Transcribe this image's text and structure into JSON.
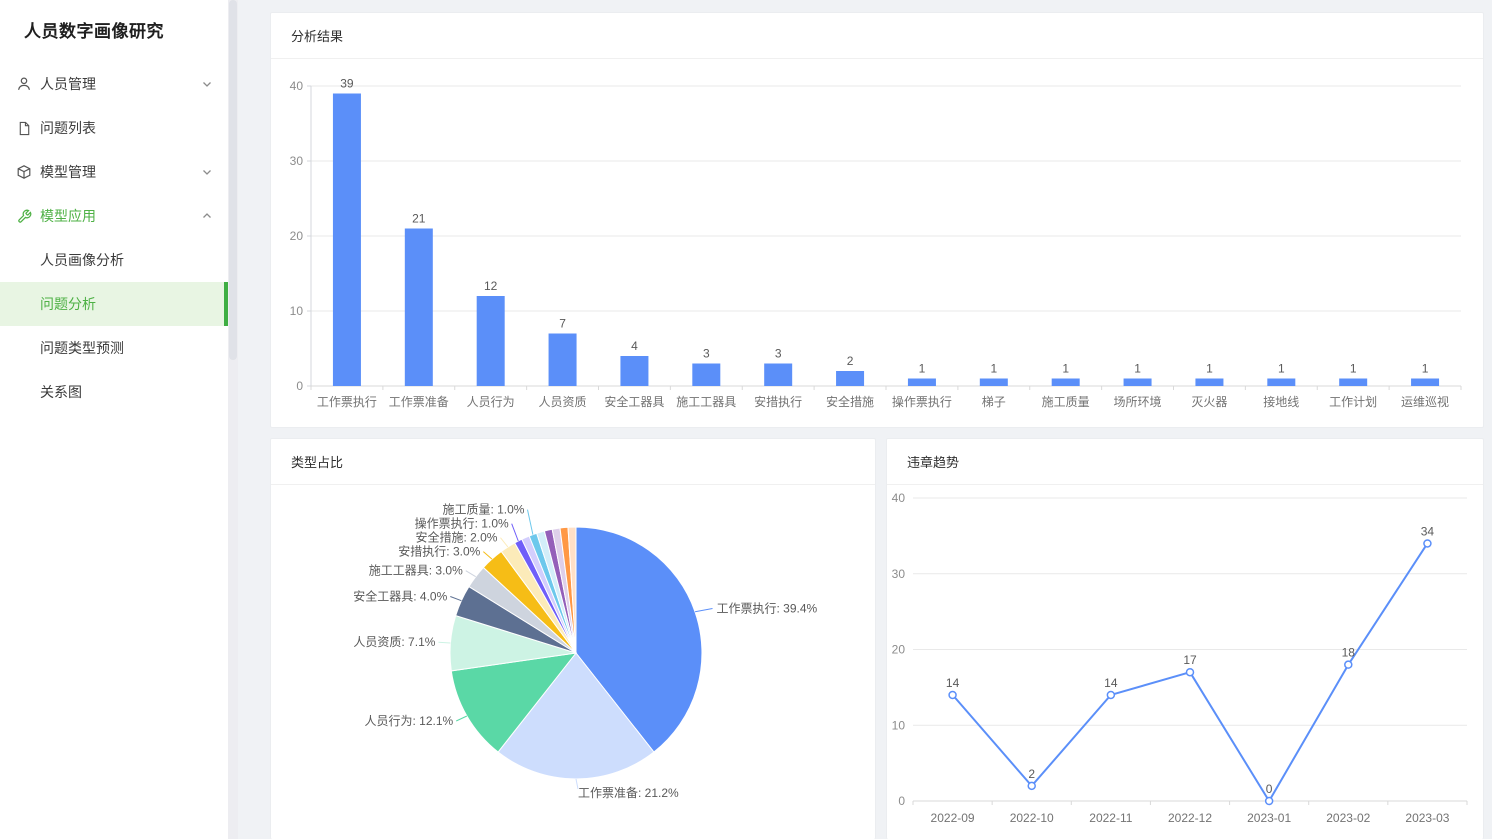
{
  "app": {
    "title": "人员数字画像研究"
  },
  "colors": {
    "accent_blue": "#5B8FF9",
    "accent_green": "#4eb145",
    "green_bar": "#3fae43",
    "active_bg": "#e8f5e3",
    "grid": "#e9e9e9",
    "axis_line": "#d4d7dc",
    "baseline": "#d9d9d9",
    "axis_text": "#8c8c8c",
    "cat_text": "#737373",
    "value_text": "#595959"
  },
  "sidebar": {
    "items": [
      {
        "label": "人员管理",
        "icon": "user-icon",
        "chevron": "down"
      },
      {
        "label": "问题列表",
        "icon": "file-icon",
        "chevron": "none"
      },
      {
        "label": "模型管理",
        "icon": "cube-icon",
        "chevron": "down"
      },
      {
        "label": "模型应用",
        "icon": "tool-icon",
        "chevron": "up"
      }
    ],
    "submenu": [
      {
        "label": "人员画像分析",
        "active": false
      },
      {
        "label": "问题分析",
        "active": true
      },
      {
        "label": "问题类型预测",
        "active": false
      },
      {
        "label": "关系图",
        "active": false
      }
    ]
  },
  "panels": {
    "analysis": {
      "title": "分析结果"
    },
    "pie": {
      "title": "类型占比"
    },
    "trend": {
      "title": "违章趋势"
    }
  },
  "chart_data": [
    {
      "type": "bar",
      "title": "分析结果",
      "categories": [
        "工作票执行",
        "工作票准备",
        "人员行为",
        "人员资质",
        "安全工器具",
        "施工工器具",
        "安措执行",
        "安全措施",
        "操作票执行",
        "梯子",
        "施工质量",
        "场所环境",
        "灭火器",
        "接地线",
        "工作计划",
        "运维巡视"
      ],
      "values": [
        39,
        21,
        12,
        7,
        4,
        3,
        3,
        2,
        1,
        1,
        1,
        1,
        1,
        1,
        1,
        1
      ],
      "xlabel": "",
      "ylabel": "",
      "ylim": [
        0,
        40
      ],
      "yticks": [
        0,
        10,
        20,
        30,
        40
      ],
      "grid": true,
      "legend": "none",
      "bar_color": "#5B8FF9"
    },
    {
      "type": "pie",
      "title": "类型占比",
      "slices": [
        {
          "name": "工作票执行",
          "value": 39,
          "pct": "39.4%",
          "color": "#5B8FF9",
          "labeled": true
        },
        {
          "name": "工作票准备",
          "value": 21,
          "pct": "21.2%",
          "color": "#CDDDFD",
          "labeled": true
        },
        {
          "name": "人员行为",
          "value": 12,
          "pct": "12.1%",
          "color": "#5AD8A6",
          "labeled": true
        },
        {
          "name": "人员资质",
          "value": 7,
          "pct": "7.1%",
          "color": "#CDF3E4",
          "labeled": true
        },
        {
          "name": "安全工器具",
          "value": 4,
          "pct": "4.0%",
          "color": "#5D7092",
          "labeled": true
        },
        {
          "name": "施工工器具",
          "value": 3,
          "pct": "3.0%",
          "color": "#CED4DE",
          "labeled": true
        },
        {
          "name": "安措执行",
          "value": 3,
          "pct": "3.0%",
          "color": "#F6BD16",
          "labeled": true
        },
        {
          "name": "安全措施",
          "value": 2,
          "pct": "2.0%",
          "color": "#FCEBB9",
          "labeled": true
        },
        {
          "name": "操作票执行",
          "value": 1,
          "pct": "1.0%",
          "color": "#6F5EF9",
          "labeled": true
        },
        {
          "name": "梯子",
          "value": 1,
          "pct": "1.0%",
          "color": "#D3CEFD",
          "labeled": false
        },
        {
          "name": "施工质量",
          "value": 1,
          "pct": "1.0%",
          "color": "#6DC8EC",
          "labeled": true
        },
        {
          "name": "场所环境",
          "value": 1,
          "pct": "1.0%",
          "color": "#D3EEF9",
          "labeled": false
        },
        {
          "name": "灭火器",
          "value": 1,
          "pct": "1.0%",
          "color": "#945FB9",
          "labeled": false
        },
        {
          "name": "接地线",
          "value": 1,
          "pct": "1.0%",
          "color": "#DECFEA",
          "labeled": false
        },
        {
          "name": "工作计划",
          "value": 1,
          "pct": "1.0%",
          "color": "#FF9845",
          "labeled": false
        },
        {
          "name": "运维巡视",
          "value": 1,
          "pct": "1.0%",
          "color": "#FFE0C7",
          "labeled": false
        }
      ],
      "legend": "none"
    },
    {
      "type": "line",
      "title": "违章趋势",
      "x": [
        "2022-09",
        "2022-10",
        "2022-11",
        "2022-12",
        "2023-01",
        "2023-02",
        "2023-03"
      ],
      "values": [
        14,
        2,
        14,
        17,
        0,
        18,
        34
      ],
      "xlabel": "",
      "ylabel": "",
      "ylim": [
        0,
        40
      ],
      "yticks": [
        0,
        10,
        20,
        30,
        40
      ],
      "grid": true,
      "legend": "none",
      "line_color": "#5B8FF9"
    }
  ]
}
